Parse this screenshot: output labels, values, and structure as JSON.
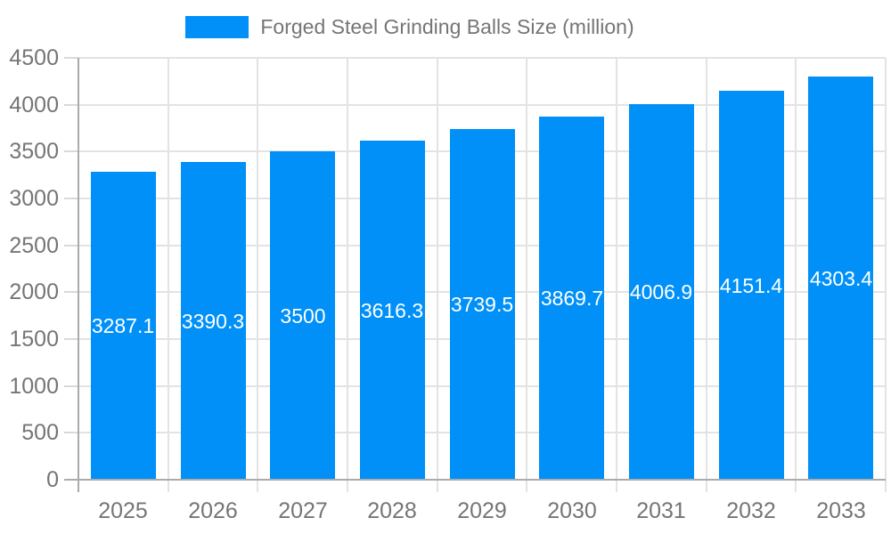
{
  "legend": {
    "label": "Forged Steel Grinding Balls Size (million)"
  },
  "chart_data": {
    "type": "bar",
    "title": "Forged Steel Grinding Balls Size (million)",
    "categories": [
      "2025",
      "2026",
      "2027",
      "2028",
      "2029",
      "2030",
      "2031",
      "2032",
      "2033"
    ],
    "series": [
      {
        "name": "Forged Steel Grinding Balls Size (million)",
        "values": [
          3287.1,
          3390.3,
          3500,
          3616.3,
          3739.5,
          3869.7,
          4006.9,
          4151.4,
          4303.4
        ]
      }
    ],
    "value_labels": [
      "3287.1",
      "3390.3",
      "3500",
      "3616.3",
      "3739.5",
      "3869.7",
      "4006.9",
      "4151.4",
      "4303.4"
    ],
    "xlabel": "",
    "ylabel": "",
    "ylim": [
      0,
      4500
    ],
    "y_tick_step": 500,
    "y_tick_labels": [
      "0",
      "500",
      "1000",
      "1500",
      "2000",
      "2500",
      "3000",
      "3500",
      "4000",
      "4500"
    ],
    "grid": true,
    "legend_position": "top",
    "colors": {
      "bar": "#0090F8",
      "gridline": "#e3e3e3",
      "axis_line": "#ababab",
      "tick_text": "#757575",
      "value_label_text": "#ffffff",
      "background": "#ffffff"
    }
  }
}
